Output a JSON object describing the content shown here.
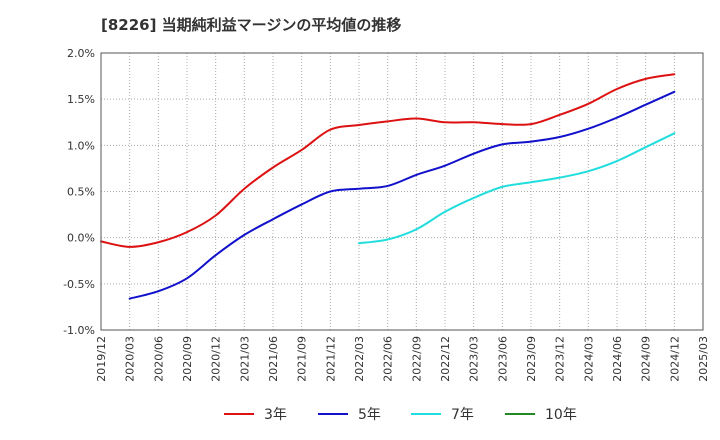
{
  "chart_data": {
    "type": "line",
    "title": "[8226]  当期純利益マージンの平均値の推移",
    "xlabel": "",
    "ylabel": "",
    "x": [
      "2019/12",
      "2020/03",
      "2020/06",
      "2020/09",
      "2020/12",
      "2021/03",
      "2021/06",
      "2021/09",
      "2021/12",
      "2022/03",
      "2022/06",
      "2022/09",
      "2022/12",
      "2023/03",
      "2023/06",
      "2023/09",
      "2023/12",
      "2024/03",
      "2024/06",
      "2024/09",
      "2024/12",
      "2025/03"
    ],
    "ylim": [
      -1.0,
      2.0
    ],
    "yticks": [
      -1.0,
      -0.5,
      0.0,
      0.5,
      1.0,
      1.5,
      2.0
    ],
    "ytick_labels": [
      "-1.0%",
      "-0.5%",
      "0.0%",
      "0.5%",
      "1.0%",
      "1.5%",
      "2.0%"
    ],
    "grid": true,
    "legend_position": "bottom",
    "series": [
      {
        "name": "3年",
        "color": "#dd1111",
        "values": [
          -0.04,
          -0.1,
          -0.05,
          0.06,
          0.24,
          0.53,
          0.76,
          0.95,
          1.17,
          1.22,
          1.26,
          1.29,
          1.25,
          1.25,
          1.23,
          1.23,
          1.33,
          1.45,
          1.61,
          1.72,
          1.77,
          null
        ]
      },
      {
        "name": "5年",
        "color": "#1111cc",
        "values": [
          null,
          -0.66,
          -0.58,
          -0.44,
          -0.19,
          0.03,
          0.2,
          0.36,
          0.5,
          0.53,
          0.56,
          0.68,
          0.78,
          0.91,
          1.01,
          1.04,
          1.09,
          1.18,
          1.3,
          1.44,
          1.58,
          null
        ]
      },
      {
        "name": "7年",
        "color": "#22dddd",
        "values": [
          null,
          null,
          null,
          null,
          null,
          null,
          null,
          null,
          null,
          -0.06,
          -0.02,
          0.09,
          0.28,
          0.43,
          0.55,
          0.6,
          0.65,
          0.72,
          0.83,
          0.98,
          1.13,
          null
        ]
      },
      {
        "name": "10年",
        "color": "#228822",
        "values": [
          null,
          null,
          null,
          null,
          null,
          null,
          null,
          null,
          null,
          null,
          null,
          null,
          null,
          null,
          null,
          null,
          null,
          null,
          null,
          null,
          null,
          null
        ]
      }
    ]
  }
}
